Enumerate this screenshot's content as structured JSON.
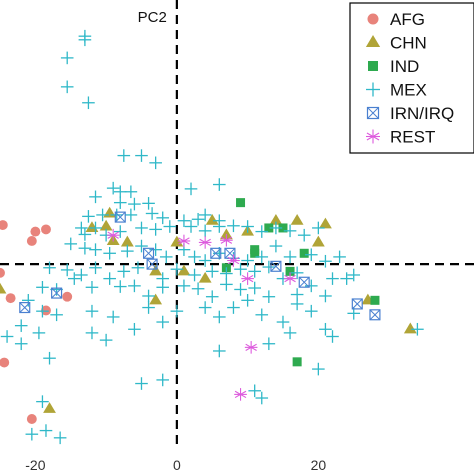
{
  "chart_data": {
    "type": "scatter",
    "title": "",
    "xlabel": "",
    "ylabel": "PC2",
    "xlim": [
      -25,
      42
    ],
    "ylim": [
      -29,
      36.5
    ],
    "x_ticks": [
      "-20",
      "0",
      "20"
    ],
    "reference_lines": {
      "x": 0,
      "y": 0,
      "style": "dashed"
    },
    "legend_placement": "top-right",
    "series": [
      {
        "name": "AFG",
        "marker": "circle",
        "color": "#E8837B",
        "points": [
          [
            -24.6,
            5.4
          ],
          [
            -20,
            4.5
          ],
          [
            -18.5,
            4.8
          ],
          [
            -20.5,
            3.2
          ],
          [
            -25,
            -1.2
          ],
          [
            -15.5,
            -4.5
          ],
          [
            -23.5,
            -4.7
          ],
          [
            -18.5,
            -6.4
          ],
          [
            -24.4,
            -13.6
          ],
          [
            -20.5,
            -21.4
          ]
        ]
      },
      {
        "name": "CHN",
        "marker": "triangle",
        "color": "#B0A437",
        "points": [
          [
            -12,
            5
          ],
          [
            -9,
            3.2
          ],
          [
            -10,
            5.2
          ],
          [
            -9.5,
            7
          ],
          [
            -7,
            3
          ],
          [
            -3,
            -1
          ],
          [
            -3,
            -5
          ],
          [
            0,
            3
          ],
          [
            1,
            -1
          ],
          [
            4,
            -2
          ],
          [
            5,
            6
          ],
          [
            7,
            4
          ],
          [
            10,
            4.5
          ],
          [
            14,
            6
          ],
          [
            17,
            6
          ],
          [
            20,
            3
          ],
          [
            21,
            5.5
          ],
          [
            -26,
            -1.5
          ],
          [
            -25,
            -3.5
          ],
          [
            -18,
            -20
          ],
          [
            27,
            -5
          ],
          [
            33,
            -9
          ]
        ]
      },
      {
        "name": "IND",
        "marker": "square",
        "color": "#2EAA4F",
        "points": [
          [
            9,
            8.5
          ],
          [
            13,
            5
          ],
          [
            11,
            1.5
          ],
          [
            7,
            -0.5
          ],
          [
            11,
            2
          ],
          [
            16,
            -1
          ],
          [
            15,
            5
          ],
          [
            18,
            1.5
          ],
          [
            28,
            -5
          ],
          [
            17,
            -13.5
          ]
        ]
      },
      {
        "name": "MEX",
        "marker": "plus",
        "color": "#2FB8C8",
        "points": [
          [
            -13,
            31.5
          ],
          [
            -13,
            31.0
          ],
          [
            -15.5,
            28.5
          ],
          [
            -15.5,
            24.5
          ],
          [
            -12.5,
            22.3
          ],
          [
            -5,
            15
          ],
          [
            -3,
            14
          ],
          [
            -7.5,
            15.0
          ],
          [
            -9,
            10.5
          ],
          [
            -8,
            10.0
          ],
          [
            -6.5,
            10.0
          ],
          [
            -11.5,
            9.3
          ],
          [
            -8,
            8.5
          ],
          [
            -6,
            8.3
          ],
          [
            -4,
            8.4
          ],
          [
            2,
            10.4
          ],
          [
            6,
            11.0
          ],
          [
            -12.5,
            6.6
          ],
          [
            -10.5,
            6.8
          ],
          [
            -8.5,
            6.8
          ],
          [
            -6.5,
            6.8
          ],
          [
            -3.5,
            7.0
          ],
          [
            -2,
            6.4
          ],
          [
            1,
            6.0
          ],
          [
            3,
            6.2
          ],
          [
            4,
            6.8
          ],
          [
            6,
            6.0
          ],
          [
            -13.5,
            5.0
          ],
          [
            -11.5,
            5.0
          ],
          [
            -13,
            4.1
          ],
          [
            -10,
            4.0
          ],
          [
            -8,
            4.5
          ],
          [
            -5,
            5.0
          ],
          [
            -3,
            4.8
          ],
          [
            -1,
            5.2
          ],
          [
            2,
            5.2
          ],
          [
            4,
            4.6
          ],
          [
            6,
            5.2
          ],
          [
            8,
            5.3
          ],
          [
            10,
            5.2
          ],
          [
            12,
            4.5
          ],
          [
            14,
            5.0
          ],
          [
            16,
            4.6
          ],
          [
            18,
            4.0
          ],
          [
            20,
            5.0
          ],
          [
            -15,
            2.8
          ],
          [
            -13,
            2.2
          ],
          [
            -11.5,
            2.0
          ],
          [
            -9.5,
            1.5
          ],
          [
            -7,
            1.8
          ],
          [
            -5,
            2.5
          ],
          [
            -3,
            2.0
          ],
          [
            -1.5,
            1.0
          ],
          [
            1,
            2.0
          ],
          [
            2.5,
            1.0
          ],
          [
            4,
            0.5
          ],
          [
            6,
            1.5
          ],
          [
            8,
            0.8
          ],
          [
            10,
            0.5
          ],
          [
            12,
            1.0
          ],
          [
            14,
            2.5
          ],
          [
            16,
            1.0
          ],
          [
            19,
            1.3
          ],
          [
            21,
            0.4
          ],
          [
            23,
            1.0
          ],
          [
            -18,
            -0.5
          ],
          [
            -15.5,
            -0.8
          ],
          [
            -13.5,
            -1.5
          ],
          [
            -11.5,
            -0.5
          ],
          [
            -9.5,
            -2.0
          ],
          [
            -7.5,
            -1.0
          ],
          [
            -5.5,
            -0.5
          ],
          [
            -2,
            -2.0
          ],
          [
            0,
            -0.7
          ],
          [
            2.5,
            -1.5
          ],
          [
            5,
            -1.0
          ],
          [
            7,
            -1.3
          ],
          [
            9,
            -0.7
          ],
          [
            11,
            -1.0
          ],
          [
            13,
            -0.4
          ],
          [
            15,
            -2.0
          ],
          [
            17,
            -1.2
          ],
          [
            22,
            -2.0
          ],
          [
            25,
            -1.5
          ],
          [
            -19,
            -3.2
          ],
          [
            -17,
            -3.5
          ],
          [
            -14.5,
            -2.0
          ],
          [
            -12,
            -3.2
          ],
          [
            -8,
            -3.1
          ],
          [
            -6,
            -3.0
          ],
          [
            -4,
            -4.4
          ],
          [
            -2,
            -3.2
          ],
          [
            1,
            -3.0
          ],
          [
            3,
            -3.4
          ],
          [
            5,
            -4.5
          ],
          [
            7,
            -2.8
          ],
          [
            9,
            -3.5
          ],
          [
            11,
            -3.3
          ],
          [
            13,
            -4.5
          ],
          [
            17,
            -4.2
          ],
          [
            19,
            -3.0
          ],
          [
            21,
            -4.4
          ],
          [
            24,
            -2.0
          ],
          [
            -21,
            -5.0
          ],
          [
            -19,
            -6.5
          ],
          [
            -17,
            -7.0
          ],
          [
            -12,
            -6.5
          ],
          [
            -9,
            -7.3
          ],
          [
            -4,
            -6.0
          ],
          [
            -2,
            -8.0
          ],
          [
            0,
            -6.5
          ],
          [
            4,
            -6.0
          ],
          [
            6,
            -7.3
          ],
          [
            8,
            -6.0
          ],
          [
            10,
            -5.0
          ],
          [
            12,
            -7.0
          ],
          [
            15,
            -8.0
          ],
          [
            17,
            -5.5
          ],
          [
            19,
            -6.5
          ],
          [
            21,
            -9.0
          ],
          [
            25,
            -6.8
          ],
          [
            -22,
            -8.5
          ],
          [
            -19.5,
            -9.5
          ],
          [
            -12,
            -9.5
          ],
          [
            -10,
            -10.5
          ],
          [
            -6,
            -9.0
          ],
          [
            16,
            -9.5
          ],
          [
            22,
            -10.0
          ],
          [
            34,
            -9.0
          ],
          [
            -24,
            -10.0
          ],
          [
            -22,
            -11.0
          ],
          [
            -18,
            -13.0
          ],
          [
            6,
            -12.0
          ],
          [
            13,
            -11.0
          ],
          [
            20,
            -14.5
          ],
          [
            -5,
            -16.5
          ],
          [
            -2,
            -16.0
          ],
          [
            11,
            -17.5
          ],
          [
            12,
            -18.5
          ],
          [
            -19,
            -19.0
          ],
          [
            -20.5,
            -23.5
          ],
          [
            -18.5,
            -23.0
          ],
          [
            -16.5,
            -24.0
          ]
        ]
      },
      {
        "name": "IRN/IRQ",
        "marker": "boxx",
        "color": "#4A80D0",
        "points": [
          [
            -8,
            6.5
          ],
          [
            -4,
            1.5
          ],
          [
            -3.5,
            0
          ],
          [
            5.5,
            1.5
          ],
          [
            7.5,
            1.5
          ],
          [
            14,
            -0.3
          ],
          [
            18,
            -2.5
          ],
          [
            25.5,
            -5.5
          ],
          [
            28,
            -7
          ],
          [
            -21.5,
            -6
          ],
          [
            -17,
            -4
          ]
        ]
      },
      {
        "name": "REST",
        "marker": "asterisk",
        "color": "#DD5ADD",
        "points": [
          [
            -9,
            4
          ],
          [
            1,
            3.2
          ],
          [
            4,
            3
          ],
          [
            7,
            3.3
          ],
          [
            8,
            0.5
          ],
          [
            10,
            -2
          ],
          [
            16,
            -2
          ],
          [
            10.5,
            -11.5
          ],
          [
            9,
            -18
          ]
        ]
      }
    ]
  }
}
